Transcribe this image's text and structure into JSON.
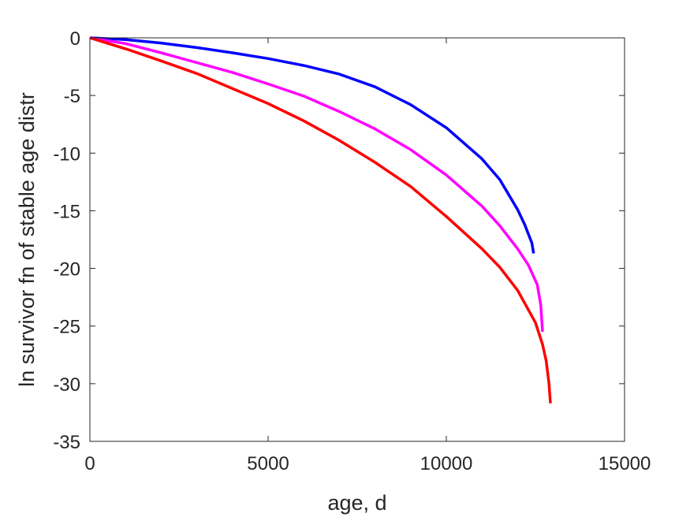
{
  "chart_data": {
    "type": "line",
    "title": "",
    "xlabel": "age, d",
    "ylabel": "ln survivor fn of stable age distr",
    "xlim": [
      0,
      15000
    ],
    "ylim": [
      -35,
      0
    ],
    "xticks": [
      0,
      5000,
      10000,
      15000
    ],
    "xtick_labels": [
      "0",
      "5000",
      "10000",
      "15000"
    ],
    "yticks": [
      0,
      -5,
      -10,
      -15,
      -20,
      -25,
      -30,
      -35
    ],
    "ytick_labels": [
      "0",
      "-5",
      "-10",
      "-15",
      "-20",
      "-25",
      "-30",
      "-35"
    ],
    "grid": false,
    "legend": "none",
    "series": [
      {
        "color": "#0000ff",
        "x": [
          0,
          1000,
          2000,
          3000,
          4000,
          5000,
          6000,
          7000,
          8000,
          9000,
          10000,
          11000,
          11500,
          12000,
          12200,
          12400,
          12450
        ],
        "y": [
          0,
          -0.15,
          -0.45,
          -0.85,
          -1.3,
          -1.8,
          -2.4,
          -3.15,
          -4.25,
          -5.8,
          -7.8,
          -10.5,
          -12.3,
          -14.9,
          -16.2,
          -17.8,
          -18.7
        ]
      },
      {
        "color": "#ff00ff",
        "x": [
          0,
          1000,
          2000,
          3000,
          4000,
          5000,
          6000,
          7000,
          8000,
          9000,
          10000,
          11000,
          11500,
          12000,
          12300,
          12550,
          12650,
          12700
        ],
        "y": [
          0,
          -0.5,
          -1.3,
          -2.15,
          -3.0,
          -4.0,
          -5.05,
          -6.4,
          -7.9,
          -9.7,
          -11.9,
          -14.6,
          -16.3,
          -18.3,
          -19.7,
          -21.4,
          -23.2,
          -25.5
        ]
      },
      {
        "color": "#ff0000",
        "x": [
          0,
          1000,
          2000,
          3000,
          4000,
          5000,
          6000,
          7000,
          8000,
          9000,
          10000,
          11000,
          11500,
          12000,
          12500,
          12700,
          12800,
          12880,
          12920
        ],
        "y": [
          0,
          -0.95,
          -2.0,
          -3.1,
          -4.4,
          -5.7,
          -7.2,
          -8.9,
          -10.8,
          -12.9,
          -15.5,
          -18.3,
          -19.9,
          -21.9,
          -24.7,
          -26.6,
          -28.0,
          -30.0,
          -31.7
        ]
      }
    ]
  }
}
